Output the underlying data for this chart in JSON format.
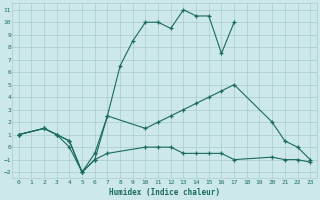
{
  "xlabel": "Humidex (Indice chaleur)",
  "background_color": "#cce8e8",
  "grid_color": "#aacccc",
  "line_color": "#1a6b5a",
  "xlim": [
    -0.5,
    23.5
  ],
  "ylim": [
    -2.5,
    11.5
  ],
  "xticks": [
    0,
    1,
    2,
    3,
    4,
    5,
    6,
    7,
    8,
    9,
    10,
    11,
    12,
    13,
    14,
    15,
    16,
    17,
    18,
    19,
    20,
    21,
    22,
    23
  ],
  "yticks": [
    -2,
    -1,
    0,
    1,
    2,
    3,
    4,
    5,
    6,
    7,
    8,
    9,
    10,
    11
  ],
  "line1": {
    "x": [
      0,
      2,
      3,
      4,
      5,
      6,
      7,
      8,
      9,
      10,
      11,
      12,
      13,
      14,
      15,
      16,
      17
    ],
    "y": [
      1,
      1.5,
      1,
      0.5,
      -2,
      -0.5,
      2.5,
      6.5,
      8.5,
      10.0,
      10.0,
      9.5,
      11.0,
      10.5,
      10.5,
      7.5,
      10.0
    ]
  },
  "line2": {
    "x": [
      0,
      2,
      3,
      4,
      5,
      6,
      7,
      10,
      11,
      12,
      13,
      14,
      15,
      16,
      17,
      20,
      21,
      22,
      23
    ],
    "y": [
      1,
      1.5,
      1,
      0.5,
      -2,
      -1.0,
      2.5,
      1.5,
      2.0,
      2.5,
      3.0,
      3.5,
      4.0,
      4.5,
      5.0,
      2.0,
      0.5,
      0.0,
      -1.0
    ]
  },
  "line3": {
    "x": [
      0,
      2,
      3,
      4,
      5,
      6,
      7,
      10,
      11,
      12,
      13,
      14,
      15,
      16,
      17,
      20,
      21,
      22,
      23
    ],
    "y": [
      1,
      1.5,
      1,
      0.0,
      -2,
      -1.0,
      -0.5,
      0.0,
      0.0,
      0.0,
      -0.5,
      -0.5,
      -0.5,
      -0.5,
      -1.0,
      -0.8,
      -1.0,
      -1.0,
      -1.2
    ]
  }
}
